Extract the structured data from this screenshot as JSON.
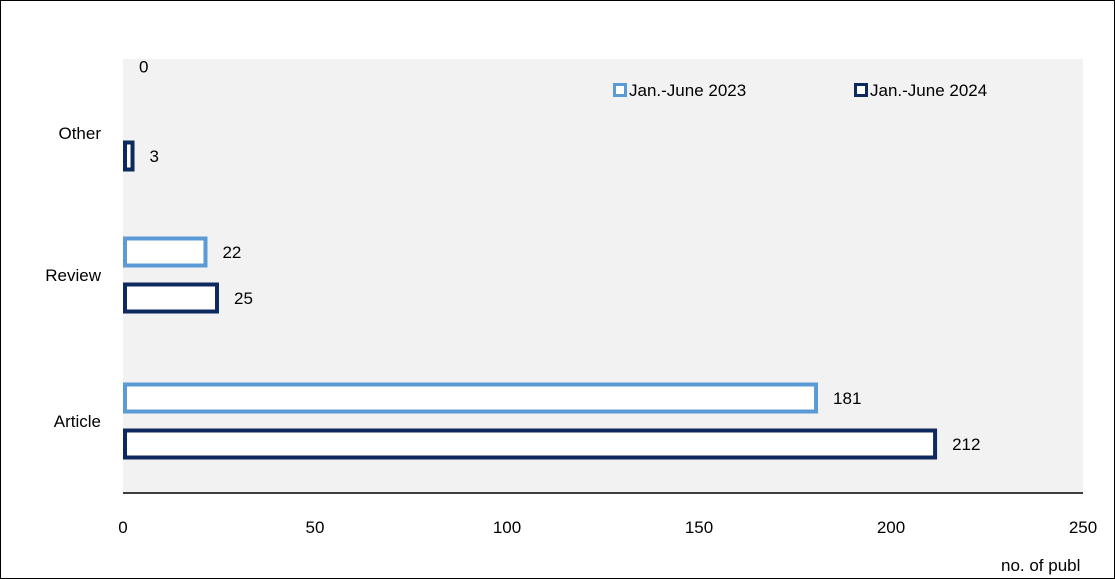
{
  "chart_data": {
    "type": "bar",
    "orientation": "horizontal",
    "categories": [
      "Other",
      "Review",
      "Article"
    ],
    "series": [
      {
        "name": "Jan.-June 2023",
        "values": [
          0,
          22,
          181
        ],
        "color": "#5b9bd5"
      },
      {
        "name": "Jan.-June 2024",
        "values": [
          3,
          25,
          212
        ],
        "color": "#0d2a5e"
      }
    ],
    "xlim": [
      0,
      250
    ],
    "xticks": [
      0,
      50,
      100,
      150,
      200,
      250
    ],
    "xlabel": "no. of publ",
    "ylabel": "",
    "title": "",
    "grid": false,
    "legend_position": "top-right",
    "plot_background": "#f2f2f2"
  }
}
